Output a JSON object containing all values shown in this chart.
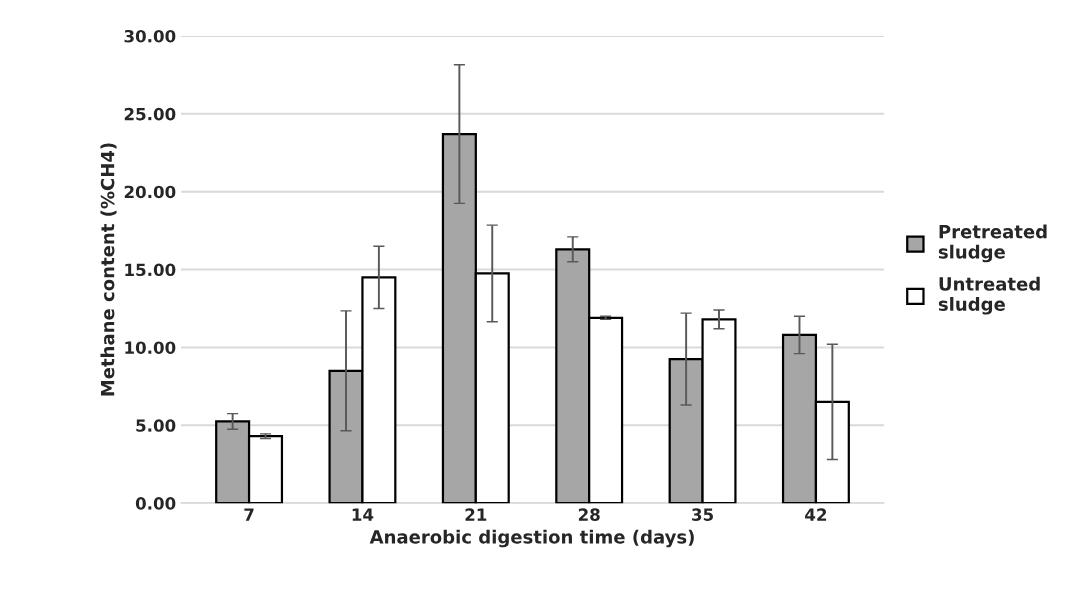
{
  "chart_data": {
    "type": "bar",
    "xlabel": "Anaerobic digestion time (days)",
    "ylabel": "Methane content (%CH4)",
    "categories": [
      "7",
      "14",
      "21",
      "28",
      "35",
      "42"
    ],
    "series": [
      {
        "name": "Pretreated\nsludge",
        "color": "#a6a6a6",
        "values": [
          5.25,
          8.5,
          23.7,
          16.3,
          9.25,
          10.8
        ],
        "errors": [
          0.5,
          3.85,
          4.45,
          0.8,
          2.95,
          1.2
        ]
      },
      {
        "name": "Untreated\nsludge",
        "color": "#ffffff",
        "values": [
          4.3,
          14.5,
          14.75,
          11.9,
          11.8,
          6.5
        ],
        "errors": [
          0.15,
          2.0,
          3.1,
          0.1,
          0.6,
          3.7
        ]
      }
    ],
    "ylim": [
      0,
      30
    ],
    "yticks": [
      {
        "value": 0,
        "label": "0.00"
      },
      {
        "value": 5,
        "label": "5.00"
      },
      {
        "value": 10,
        "label": "10.00"
      },
      {
        "value": 15,
        "label": "15.00"
      },
      {
        "value": 20,
        "label": "20.00"
      },
      {
        "value": 25,
        "label": "25.00"
      },
      {
        "value": 30,
        "label": "30.00"
      }
    ],
    "grid": "y",
    "legend": "right"
  }
}
